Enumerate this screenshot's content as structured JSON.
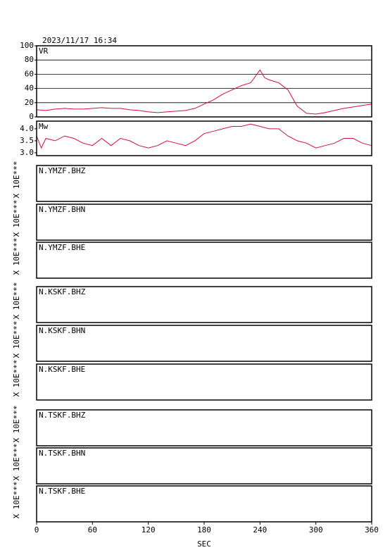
{
  "timestamp": "2023/11/17 16:34",
  "chart_data": [
    {
      "type": "line",
      "label": "VR",
      "color": "#d0103a",
      "grid": true,
      "xlim": [
        0,
        360
      ],
      "ylim": [
        0,
        100
      ],
      "yticks": [
        0,
        20,
        40,
        60,
        80,
        100
      ],
      "x": [
        0,
        10,
        20,
        30,
        40,
        50,
        60,
        70,
        80,
        90,
        100,
        110,
        120,
        130,
        140,
        150,
        160,
        170,
        180,
        190,
        200,
        210,
        220,
        230,
        240,
        245,
        250,
        260,
        270,
        280,
        290,
        300,
        310,
        320,
        330,
        340,
        350,
        360
      ],
      "values": [
        10,
        9,
        11,
        12,
        11,
        11,
        12,
        13,
        12,
        12,
        10,
        9,
        7,
        6,
        7,
        8,
        9,
        12,
        18,
        24,
        32,
        38,
        44,
        48,
        66,
        55,
        52,
        48,
        38,
        15,
        5,
        4,
        6,
        9,
        12,
        14,
        16,
        18
      ]
    },
    {
      "type": "line",
      "label": "Mw",
      "color": "#d0103a",
      "grid": false,
      "xlim": [
        0,
        360
      ],
      "ylim": [
        2.88,
        4.32
      ],
      "yticks": [
        {
          "value": 3.0,
          "label": "3.0"
        },
        3.5,
        {
          "value": 4.0,
          "label": "4.0"
        }
      ],
      "x": [
        0,
        5,
        10,
        20,
        30,
        40,
        50,
        60,
        70,
        80,
        90,
        100,
        110,
        120,
        130,
        140,
        150,
        160,
        170,
        180,
        190,
        200,
        210,
        220,
        230,
        240,
        250,
        260,
        270,
        280,
        290,
        300,
        310,
        320,
        330,
        340,
        350,
        360
      ],
      "values": [
        3.7,
        3.2,
        3.6,
        3.5,
        3.7,
        3.6,
        3.4,
        3.3,
        3.6,
        3.3,
        3.6,
        3.5,
        3.3,
        3.2,
        3.3,
        3.5,
        3.4,
        3.3,
        3.5,
        3.8,
        3.9,
        4.0,
        4.1,
        4.1,
        4.2,
        4.1,
        4.0,
        4.0,
        3.7,
        3.5,
        3.4,
        3.2,
        3.3,
        3.4,
        3.6,
        3.6,
        3.4,
        3.3
      ]
    }
  ],
  "panels": [
    {
      "name": "N.YMZF.BHZ",
      "scale": "X 10E***"
    },
    {
      "name": "N.YMZF.BHN",
      "scale": "X 10E***"
    },
    {
      "name": "N.YMZF.BHE",
      "scale": "X 10E***"
    },
    {
      "name": "N.KSKF.BHZ",
      "scale": "X 10E***"
    },
    {
      "name": "N.KSKF.BHN",
      "scale": "X 10E***"
    },
    {
      "name": "N.KSKF.BHE",
      "scale": "X 10E***"
    },
    {
      "name": "N.TSKF.BHZ",
      "scale": "X 10E***"
    },
    {
      "name": "N.TSKF.BHN",
      "scale": "X 10E***"
    },
    {
      "name": "N.TSKF.BHE",
      "scale": "X 10E***"
    }
  ],
  "x_axis": {
    "xlim": [
      0,
      360
    ],
    "xticks": [
      0,
      60,
      120,
      180,
      240,
      300,
      360
    ],
    "label": "SEC"
  }
}
